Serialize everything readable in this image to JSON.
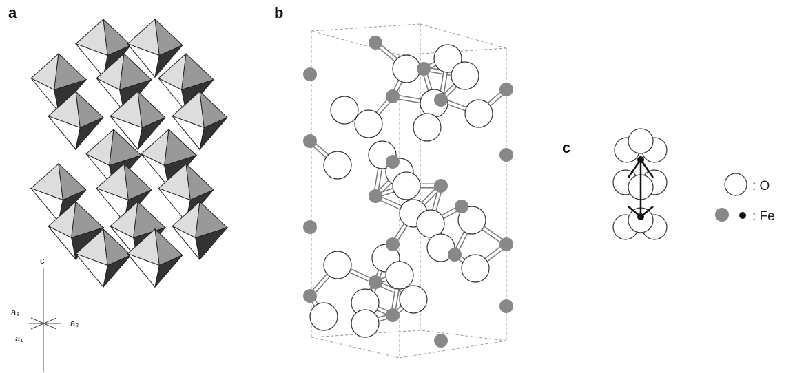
{
  "panels": {
    "a": {
      "label": "a",
      "axes": {
        "c": "c",
        "a3": "a₃",
        "a2": "a₂",
        "a1": "a₁"
      }
    },
    "b": {
      "label": "b"
    },
    "c": {
      "label": "c",
      "legend": {
        "oxygen": ": O",
        "iron": ": Fe"
      }
    }
  }
}
